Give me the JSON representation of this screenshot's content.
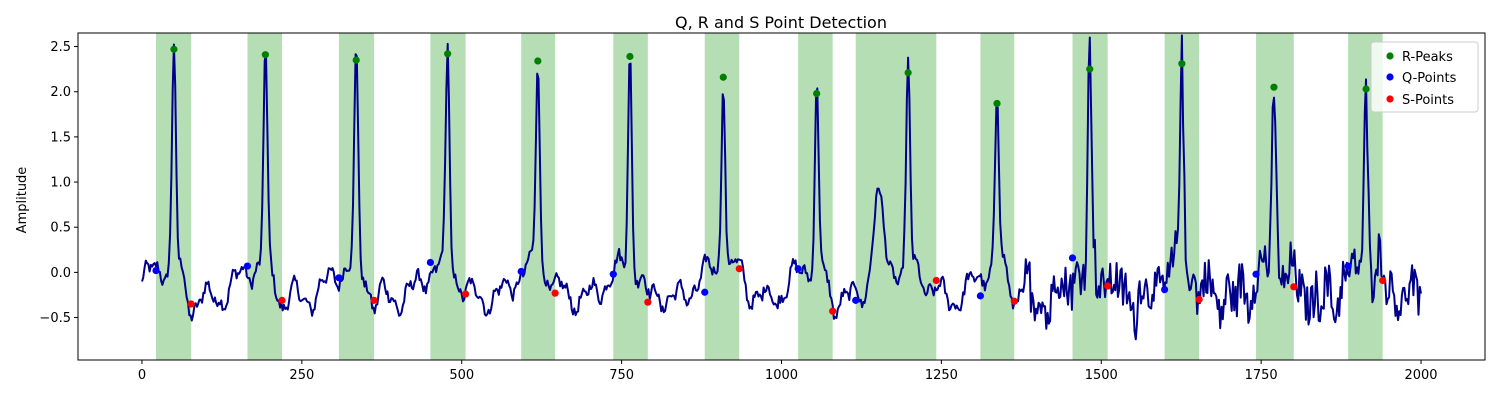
{
  "chart_data": {
    "type": "line",
    "title": "Q, R and S Point Detection",
    "xlabel": "",
    "ylabel": "Amplitude",
    "xlim": [
      -100,
      2100
    ],
    "ylim": [
      -0.97,
      2.65
    ],
    "x_ticks": [
      0,
      250,
      500,
      750,
      1000,
      1250,
      1500,
      1750,
      2000
    ],
    "y_ticks": [
      -0.5,
      0.0,
      0.5,
      1.0,
      1.5,
      2.0,
      2.5
    ],
    "x_tick_labels": [
      "0",
      "250",
      "500",
      "750",
      "1000",
      "1250",
      "1500",
      "1750",
      "2000"
    ],
    "y_tick_labels": [
      "−0.5",
      "0.0",
      "0.5",
      "1.0",
      "1.5",
      "2.0",
      "2.5"
    ],
    "grid": false,
    "legend_position": "top-right",
    "colors": {
      "signal": "#00008b",
      "r_peaks": "#008000",
      "q_points": "#0000ff",
      "s_points": "#ff0000",
      "qrs_span": "#2ca02c"
    },
    "qrs_spans": [
      [
        22,
        77
      ],
      [
        165,
        219
      ],
      [
        308,
        363
      ],
      [
        451,
        506
      ],
      [
        593,
        646
      ],
      [
        737,
        791
      ],
      [
        880,
        934
      ],
      [
        1026,
        1080
      ],
      [
        1116,
        1242
      ],
      [
        1311,
        1364
      ],
      [
        1455,
        1510
      ],
      [
        1599,
        1653
      ],
      [
        1742,
        1801
      ],
      [
        1886,
        1940
      ]
    ],
    "series": [
      {
        "name": "R-Peaks",
        "kind": "points",
        "x": [
          50,
          193,
          335,
          478,
          619,
          763,
          909,
          1055,
          1198,
          1337,
          1482,
          1626,
          1770,
          1914
        ],
        "y": [
          2.47,
          2.41,
          2.35,
          2.42,
          2.34,
          2.39,
          2.16,
          1.98,
          2.21,
          1.87,
          2.25,
          2.31,
          2.05,
          2.03
        ]
      },
      {
        "name": "Q-Points",
        "kind": "points",
        "x": [
          22,
          165,
          308,
          451,
          593,
          737,
          880,
          1026,
          1116,
          1311,
          1455,
          1599,
          1742,
          1886
        ],
        "y": [
          0.02,
          0.07,
          -0.06,
          0.11,
          0.01,
          -0.02,
          -0.22,
          0.04,
          -0.31,
          -0.26,
          0.16,
          -0.19,
          -0.02,
          0.07
        ]
      },
      {
        "name": "S-Points",
        "kind": "points",
        "x": [
          77,
          219,
          363,
          506,
          646,
          791,
          934,
          1080,
          1242,
          1364,
          1510,
          1653,
          1801,
          1940
        ],
        "y": [
          -0.35,
          -0.31,
          -0.31,
          -0.24,
          -0.23,
          -0.33,
          0.04,
          -0.43,
          -0.09,
          -0.32,
          -0.15,
          -0.3,
          -0.16,
          -0.09
        ]
      }
    ],
    "legend": [
      {
        "label": "R-Peaks"
      },
      {
        "label": "Q-Points"
      },
      {
        "label": "S-Points"
      }
    ]
  }
}
